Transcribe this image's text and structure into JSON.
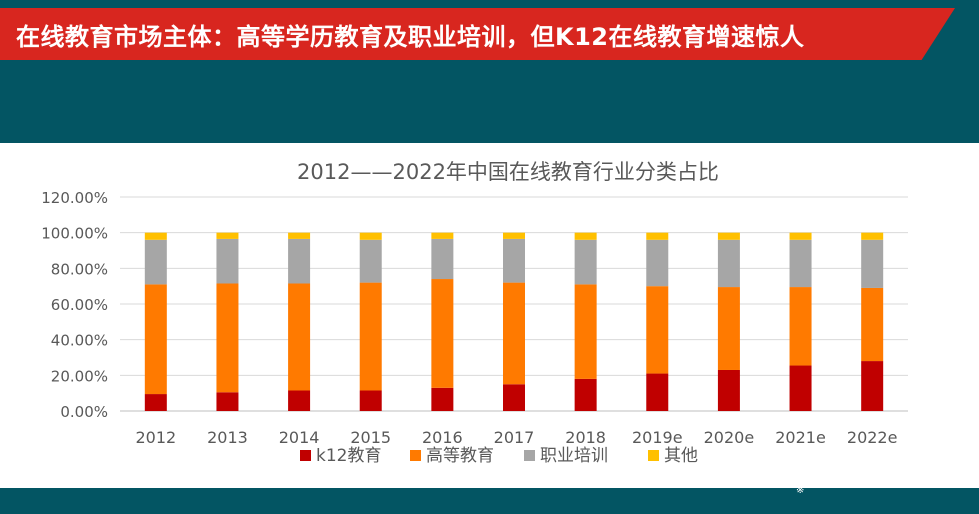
{
  "header": {
    "title": "在线教育市场主体：高等学历教育及职业培训，但K12在线教育增速惊人"
  },
  "colors": {
    "band": "#035563",
    "banner": "#d8261f"
  },
  "chart_data": {
    "type": "bar",
    "stacked": true,
    "title": "2012——2022年中国在线教育行业分类占比",
    "categories": [
      "2012",
      "2013",
      "2014",
      "2015",
      "2016",
      "2017",
      "2018",
      "2019e",
      "2020e",
      "2021e",
      "2022e"
    ],
    "y_ticks": [
      "0.00%",
      "20.00%",
      "40.00%",
      "60.00%",
      "80.00%",
      "100.00%",
      "120.00%"
    ],
    "ylim": [
      0,
      120
    ],
    "grid": true,
    "legend_position": "bottom",
    "series": [
      {
        "name": "k12教育",
        "color": "#c00000",
        "values": [
          9.5,
          10.5,
          11.5,
          11.5,
          13,
          15,
          18,
          21,
          23,
          25.5,
          28
        ]
      },
      {
        "name": "高等教育",
        "color": "#ff7a00",
        "values": [
          61.5,
          61,
          60,
          60.5,
          61,
          57,
          53,
          49,
          46.5,
          44,
          41
        ]
      },
      {
        "name": "职业培训",
        "color": "#a6a6a6",
        "values": [
          25,
          25,
          25,
          24,
          22.5,
          24.5,
          25,
          26,
          26.5,
          26.5,
          27
        ]
      },
      {
        "name": "其他",
        "color": "#ffc000",
        "values": [
          4,
          3.5,
          3.5,
          4,
          3.5,
          3.5,
          4,
          4,
          4,
          4,
          4
        ]
      }
    ]
  }
}
